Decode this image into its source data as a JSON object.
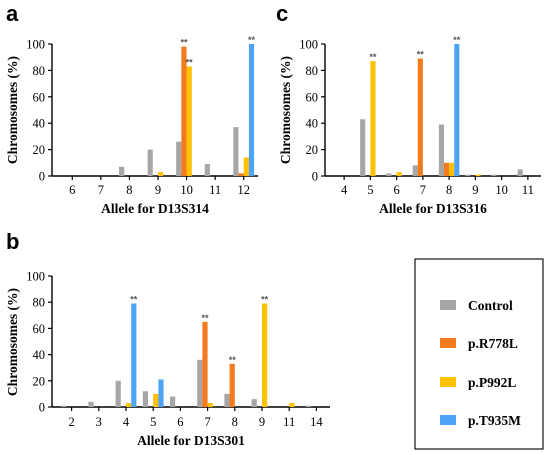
{
  "colors": {
    "Control": "#a6a6a6",
    "p.R778L": "#f47a1f",
    "p.P992L": "#ffc000",
    "p.T935M": "#4da3f5",
    "annotation": "#555555"
  },
  "legend": [
    "Control",
    "p.R778L",
    "p.P992L",
    "p.T935M"
  ],
  "chart_data": [
    {
      "panel": "a",
      "type": "bar",
      "xlabel": "Allele for D13S314",
      "ylabel": "Chromosomes (%)",
      "ylim": [
        0,
        100
      ],
      "yticks": [
        0,
        20,
        40,
        60,
        80,
        100
      ],
      "categories": [
        "6",
        "7",
        "8",
        "9",
        "10",
        "11",
        "12"
      ],
      "series": [
        {
          "name": "Control",
          "values": [
            0,
            0,
            7,
            20,
            26,
            9,
            37
          ]
        },
        {
          "name": "p.R778L",
          "values": [
            0,
            0,
            0,
            0,
            98,
            0,
            2
          ]
        },
        {
          "name": "p.P992L",
          "values": [
            0,
            0,
            0,
            3,
            83,
            0,
            14
          ]
        },
        {
          "name": "p.T935M",
          "values": [
            0,
            0,
            0,
            0,
            0,
            0,
            100
          ]
        }
      ],
      "annotations": [
        {
          "category": "10",
          "series": "p.R778L",
          "text": "**"
        },
        {
          "category": "10",
          "series": "p.P992L",
          "text": "**"
        },
        {
          "category": "12",
          "series": "p.T935M",
          "text": "**"
        }
      ]
    },
    {
      "panel": "c",
      "type": "bar",
      "xlabel": "Allele for D13S316",
      "ylabel": "Chromosomes (%)",
      "ylim": [
        0,
        100
      ],
      "yticks": [
        0,
        20,
        40,
        60,
        80,
        100
      ],
      "categories": [
        "4",
        "5",
        "6",
        "7",
        "8",
        "9",
        "10",
        "11"
      ],
      "series": [
        {
          "name": "Control",
          "values": [
            0,
            43,
            2,
            8,
            39,
            1,
            1,
            5
          ]
        },
        {
          "name": "p.R778L",
          "values": [
            0,
            0,
            0,
            89,
            10,
            0,
            0,
            0
          ]
        },
        {
          "name": "p.P992L",
          "values": [
            0,
            87,
            3,
            0,
            10,
            1,
            0,
            0
          ]
        },
        {
          "name": "p.T935M",
          "values": [
            0,
            0,
            0,
            0,
            100,
            0,
            0,
            0
          ]
        }
      ],
      "annotations": [
        {
          "category": "5",
          "series": "p.P992L",
          "text": "**"
        },
        {
          "category": "7",
          "series": "p.R778L",
          "text": "**"
        },
        {
          "category": "8",
          "series": "p.T935M",
          "text": "**"
        }
      ]
    },
    {
      "panel": "b",
      "type": "bar",
      "xlabel": "Allele for D13S301",
      "ylabel": "Chromosomes (%)",
      "ylim": [
        0,
        100
      ],
      "yticks": [
        0,
        20,
        40,
        60,
        80,
        100
      ],
      "categories": [
        "2",
        "3",
        "4",
        "5",
        "6",
        "7",
        "8",
        "9",
        "11",
        "14"
      ],
      "series": [
        {
          "name": "Control",
          "values": [
            1,
            4,
            20,
            12,
            8,
            36,
            10,
            6,
            0,
            1
          ]
        },
        {
          "name": "p.R778L",
          "values": [
            0,
            0,
            0,
            0,
            0,
            65,
            33,
            0,
            0,
            0
          ]
        },
        {
          "name": "p.P992L",
          "values": [
            0,
            0,
            3,
            10,
            0,
            3,
            0,
            79,
            3,
            0
          ]
        },
        {
          "name": "p.T935M",
          "values": [
            0,
            0,
            79,
            21,
            0,
            0,
            0,
            0,
            0,
            0
          ]
        }
      ],
      "annotations": [
        {
          "category": "4",
          "series": "p.T935M",
          "text": "**"
        },
        {
          "category": "7",
          "series": "p.R778L",
          "text": "**"
        },
        {
          "category": "8",
          "series": "p.R778L",
          "text": "**"
        },
        {
          "category": "9",
          "series": "p.P992L",
          "text": "**"
        }
      ]
    }
  ]
}
